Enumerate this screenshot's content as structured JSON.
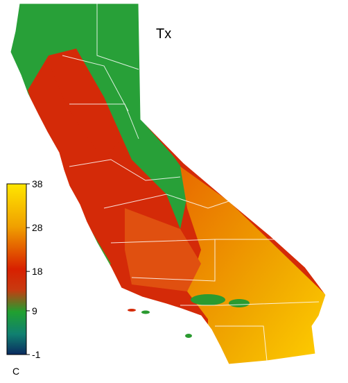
{
  "map": {
    "title": "Tx",
    "colorbar": {
      "unit": "C",
      "lim": [
        -1,
        38
      ],
      "ticks": [
        38,
        28,
        18,
        9,
        -1
      ]
    }
  }
}
